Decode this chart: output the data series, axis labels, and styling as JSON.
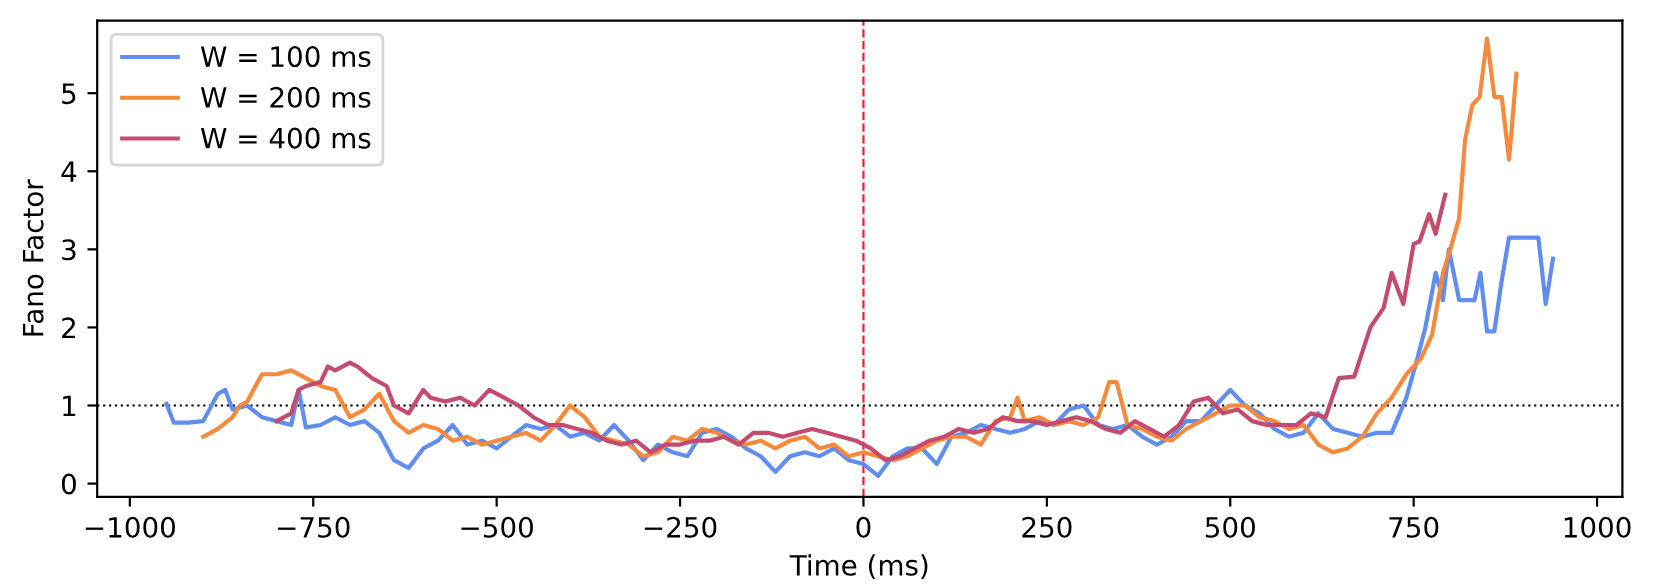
{
  "chart_data": {
    "type": "line",
    "xlabel": "Time (ms)",
    "ylabel": "Fano Factor",
    "xlim": [
      -1044.5,
      1034.5
    ],
    "ylim": [
      -0.17,
      5.93
    ],
    "xticks": [
      {
        "value": -1000,
        "label": "−1000"
      },
      {
        "value": -750,
        "label": "−750"
      },
      {
        "value": -500,
        "label": "−500"
      },
      {
        "value": -250,
        "label": "−250"
      },
      0,
      250,
      500,
      750,
      1000
    ],
    "yticks": [
      0,
      1,
      2,
      3,
      4,
      5
    ],
    "grid": false,
    "legend": "top left",
    "ref_lines": [
      {
        "axis": "y",
        "value": 1,
        "label": null,
        "color": "#000000",
        "line_style": "dotted"
      },
      {
        "axis": "x",
        "value": 0,
        "label": null,
        "color": "#e8262a",
        "line_style": "dashed"
      }
    ],
    "series": [
      {
        "name": "W = 100 ms",
        "color": "#5f8ef0",
        "x": [
          -950,
          -940,
          -920,
          -900,
          -880,
          -870,
          -860,
          -840,
          -820,
          -800,
          -780,
          -770,
          -760,
          -740,
          -720,
          -700,
          -680,
          -660,
          -640,
          -620,
          -600,
          -580,
          -560,
          -540,
          -520,
          -500,
          -480,
          -460,
          -440,
          -420,
          -400,
          -380,
          -360,
          -340,
          -320,
          -300,
          -280,
          -260,
          -240,
          -220,
          -200,
          -180,
          -160,
          -140,
          -120,
          -100,
          -80,
          -60,
          -40,
          -20,
          0,
          20,
          40,
          60,
          80,
          100,
          120,
          140,
          160,
          180,
          200,
          220,
          240,
          260,
          280,
          300,
          320,
          340,
          360,
          380,
          400,
          420,
          440,
          460,
          480,
          500,
          520,
          540,
          560,
          580,
          600,
          620,
          640,
          660,
          680,
          700,
          720,
          740,
          755,
          766,
          780,
          790,
          798,
          812,
          833,
          841,
          850,
          860,
          870,
          880,
          920,
          930,
          940
        ],
        "values": [
          1.02,
          0.78,
          0.78,
          0.8,
          1.15,
          1.2,
          0.95,
          1.0,
          0.85,
          0.8,
          0.75,
          1.2,
          0.72,
          0.75,
          0.85,
          0.75,
          0.8,
          0.65,
          0.3,
          0.2,
          0.45,
          0.55,
          0.75,
          0.5,
          0.55,
          0.45,
          0.6,
          0.75,
          0.7,
          0.75,
          0.6,
          0.65,
          0.55,
          0.75,
          0.55,
          0.3,
          0.5,
          0.4,
          0.35,
          0.65,
          0.7,
          0.6,
          0.45,
          0.35,
          0.15,
          0.35,
          0.4,
          0.35,
          0.45,
          0.3,
          0.25,
          0.1,
          0.35,
          0.45,
          0.45,
          0.25,
          0.6,
          0.65,
          0.75,
          0.7,
          0.65,
          0.7,
          0.8,
          0.75,
          0.95,
          1.0,
          0.75,
          0.7,
          0.75,
          0.6,
          0.5,
          0.6,
          0.8,
          0.8,
          1.0,
          1.2,
          1.0,
          0.9,
          0.7,
          0.6,
          0.65,
          0.9,
          0.7,
          0.65,
          0.6,
          0.65,
          0.65,
          1.1,
          1.6,
          2.0,
          2.7,
          2.35,
          3.0,
          2.35,
          2.35,
          2.7,
          1.95,
          1.95,
          2.6,
          3.15,
          3.15,
          2.3,
          2.88
        ]
      },
      {
        "name": "W = 200 ms",
        "color": "#f68a3c",
        "x": [
          -900,
          -880,
          -860,
          -850,
          -840,
          -820,
          -800,
          -780,
          -760,
          -740,
          -720,
          -700,
          -680,
          -660,
          -640,
          -620,
          -600,
          -580,
          -560,
          -540,
          -520,
          -500,
          -480,
          -460,
          -440,
          -420,
          -400,
          -380,
          -360,
          -340,
          -320,
          -300,
          -280,
          -260,
          -240,
          -220,
          -200,
          -180,
          -160,
          -140,
          -120,
          -100,
          -80,
          -60,
          -40,
          -20,
          0,
          20,
          40,
          60,
          80,
          100,
          120,
          140,
          160,
          180,
          200,
          210,
          220,
          240,
          260,
          280,
          300,
          320,
          335,
          345,
          360,
          380,
          400,
          420,
          440,
          460,
          480,
          500,
          520,
          540,
          560,
          580,
          600,
          620,
          640,
          660,
          680,
          700,
          720,
          740,
          760,
          775,
          790,
          800,
          812,
          820,
          830,
          840,
          850,
          860,
          870,
          880,
          890
        ],
        "values": [
          0.6,
          0.7,
          0.85,
          1.0,
          1.05,
          1.4,
          1.4,
          1.45,
          1.35,
          1.25,
          1.2,
          0.85,
          0.95,
          1.15,
          0.8,
          0.65,
          0.75,
          0.7,
          0.55,
          0.6,
          0.5,
          0.55,
          0.6,
          0.65,
          0.55,
          0.75,
          1.0,
          0.85,
          0.6,
          0.55,
          0.5,
          0.35,
          0.4,
          0.6,
          0.55,
          0.7,
          0.65,
          0.55,
          0.5,
          0.55,
          0.45,
          0.55,
          0.6,
          0.45,
          0.5,
          0.35,
          0.4,
          0.35,
          0.3,
          0.35,
          0.45,
          0.55,
          0.6,
          0.6,
          0.5,
          0.8,
          0.85,
          1.1,
          0.8,
          0.85,
          0.75,
          0.8,
          0.75,
          0.85,
          1.3,
          1.3,
          0.75,
          0.7,
          0.6,
          0.55,
          0.7,
          0.8,
          0.9,
          1.0,
          1.0,
          0.85,
          0.8,
          0.7,
          0.75,
          0.5,
          0.4,
          0.45,
          0.6,
          0.9,
          1.1,
          1.4,
          1.6,
          1.9,
          2.7,
          3.0,
          3.4,
          4.4,
          4.85,
          4.95,
          5.7,
          4.95,
          4.95,
          4.15,
          5.25
        ]
      },
      {
        "name": "W = 400 ms",
        "color": "#c44a6e",
        "x": [
          -800,
          -780,
          -770,
          -760,
          -740,
          -730,
          -720,
          -700,
          -690,
          -670,
          -650,
          -640,
          -620,
          -600,
          -590,
          -570,
          -550,
          -530,
          -510,
          -490,
          -470,
          -450,
          -430,
          -410,
          -390,
          -370,
          -350,
          -330,
          -310,
          -290,
          -270,
          -250,
          -230,
          -210,
          -190,
          -170,
          -150,
          -130,
          -110,
          -90,
          -70,
          -50,
          -30,
          -10,
          10,
          30,
          50,
          70,
          90,
          110,
          130,
          150,
          170,
          190,
          210,
          230,
          250,
          270,
          290,
          310,
          330,
          350,
          370,
          390,
          410,
          430,
          450,
          470,
          490,
          510,
          530,
          550,
          570,
          590,
          610,
          630,
          648,
          669,
          691,
          709,
          720,
          736,
          750,
          758,
          771,
          780,
          793
        ],
        "values": [
          0.8,
          0.9,
          1.2,
          1.25,
          1.3,
          1.5,
          1.45,
          1.55,
          1.5,
          1.35,
          1.25,
          1.0,
          0.9,
          1.2,
          1.1,
          1.05,
          1.1,
          1.0,
          1.2,
          1.1,
          1.0,
          0.85,
          0.75,
          0.75,
          0.7,
          0.65,
          0.55,
          0.5,
          0.55,
          0.4,
          0.5,
          0.5,
          0.55,
          0.55,
          0.6,
          0.5,
          0.65,
          0.65,
          0.6,
          0.65,
          0.7,
          0.65,
          0.6,
          0.55,
          0.45,
          0.3,
          0.35,
          0.45,
          0.55,
          0.6,
          0.7,
          0.65,
          0.7,
          0.85,
          0.8,
          0.8,
          0.75,
          0.8,
          0.85,
          0.8,
          0.7,
          0.65,
          0.8,
          0.7,
          0.6,
          0.75,
          1.05,
          1.1,
          0.9,
          0.95,
          0.8,
          0.75,
          0.75,
          0.75,
          0.9,
          0.85,
          1.35,
          1.37,
          2.0,
          2.25,
          2.7,
          2.3,
          3.07,
          3.1,
          3.45,
          3.2,
          3.7
        ]
      }
    ]
  }
}
